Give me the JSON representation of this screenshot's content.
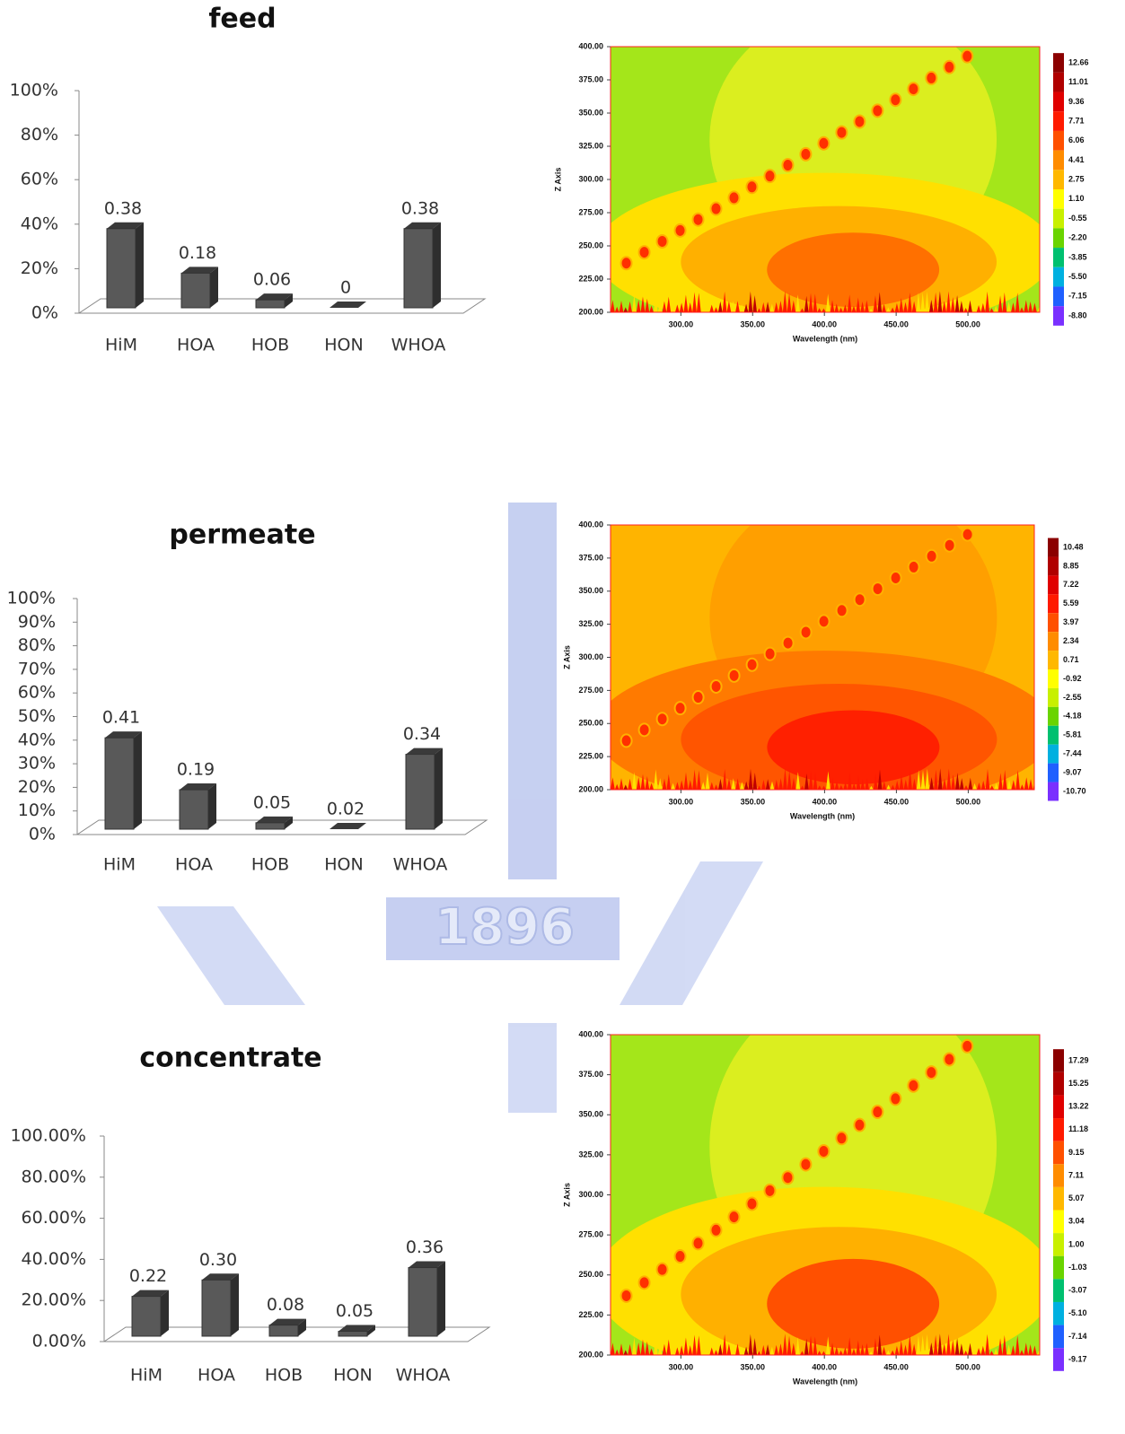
{
  "watermark": "1896",
  "chart_data": [
    {
      "type": "bar",
      "title": "feed",
      "categories": [
        "HiM",
        "HOA",
        "HOB",
        "HON",
        "WHOA"
      ],
      "values": [
        38,
        18,
        6,
        0,
        38
      ],
      "value_labels": [
        "0.38",
        "0.18",
        "0.06",
        "0",
        "0.38"
      ],
      "color": "#595959",
      "ylim": [
        0,
        100
      ],
      "yticks": [
        {
          "value": 0,
          "label": "0%"
        },
        {
          "value": 20,
          "label": "20%"
        },
        {
          "value": 40,
          "label": "40%"
        },
        {
          "value": 60,
          "label": "60%"
        },
        {
          "value": 80,
          "label": "80%"
        },
        {
          "value": 100,
          "label": "100%"
        }
      ]
    },
    {
      "type": "contour",
      "xlabel": "Wavelength (nm)",
      "ylabel": "Z Axis",
      "xlim": [
        251,
        550
      ],
      "ylim": [
        200,
        400
      ],
      "xticks": [
        {
          "value": 300,
          "label": "300.00"
        },
        {
          "value": 350,
          "label": "350.00"
        },
        {
          "value": 400,
          "label": "400.00"
        },
        {
          "value": 450,
          "label": "450.00"
        },
        {
          "value": 500,
          "label": "500.00"
        }
      ],
      "yticks": [
        {
          "value": 200,
          "label": "200.00"
        },
        {
          "value": 225,
          "label": "225.00"
        },
        {
          "value": 250,
          "label": "250.00"
        },
        {
          "value": 275,
          "label": "275.00"
        },
        {
          "value": 300,
          "label": "300.00"
        },
        {
          "value": 325,
          "label": "325.00"
        },
        {
          "value": 350,
          "label": "350.00"
        },
        {
          "value": 375,
          "label": "375.00"
        },
        {
          "value": 400,
          "label": "400.00"
        }
      ],
      "colorbar_ticks": [
        12.66,
        11.01,
        9.36,
        7.71,
        6.06,
        4.41,
        2.75,
        {
          "value": 1.1,
          "label": "1.10"
        },
        -0.55,
        {
          "value": -2.2,
          "label": "-2.20"
        },
        -3.85,
        {
          "value": -5.5,
          "label": "-5.50"
        },
        -7.15,
        {
          "value": -8.8,
          "label": "-8.80"
        }
      ],
      "colors": [
        "#8b0000",
        "#b00000",
        "#e00000",
        "#ff1a00",
        "#ff5000",
        "#ff8c00",
        "#ffb800",
        "#ffff00",
        "#c8f000",
        "#6ad400",
        "#00c070",
        "#00b0e0",
        "#2060ff",
        "#7a30ff"
      ],
      "background": "#a4e61a",
      "field_colors": [
        "#e8f020",
        "#ffe000",
        "#ffb000",
        "#ff7000"
      ]
    },
    {
      "type": "bar",
      "title": "permeate",
      "categories": [
        "HiM",
        "HOA",
        "HOB",
        "HON",
        "WHOA"
      ],
      "values": [
        41,
        19,
        5,
        2,
        34
      ],
      "value_labels": [
        "0.41",
        "0.19",
        "0.05",
        "0.02",
        "0.34"
      ],
      "color": "#595959",
      "ylim": [
        0,
        100
      ],
      "yticks": [
        {
          "value": 0,
          "label": "0%"
        },
        {
          "value": 10,
          "label": "10%"
        },
        {
          "value": 20,
          "label": "20%"
        },
        {
          "value": 30,
          "label": "30%"
        },
        {
          "value": 40,
          "label": "40%"
        },
        {
          "value": 50,
          "label": "50%"
        },
        {
          "value": 60,
          "label": "60%"
        },
        {
          "value": 70,
          "label": "70%"
        },
        {
          "value": 80,
          "label": "80%"
        },
        {
          "value": 90,
          "label": "90%"
        },
        {
          "value": 100,
          "label": "100%"
        }
      ]
    },
    {
      "type": "contour",
      "xlabel": "Wavelength (nm)",
      "ylabel": "Z Axis",
      "xlim": [
        251,
        546
      ],
      "ylim": [
        200,
        400
      ],
      "xticks": [
        {
          "value": 300,
          "label": "300.00"
        },
        {
          "value": 350,
          "label": "350.00"
        },
        {
          "value": 400,
          "label": "400.00"
        },
        {
          "value": 450,
          "label": "450.00"
        },
        {
          "value": 500,
          "label": "500.00"
        }
      ],
      "yticks": [
        {
          "value": 200,
          "label": "200.00"
        },
        {
          "value": 225,
          "label": "225.00"
        },
        {
          "value": 250,
          "label": "250.00"
        },
        {
          "value": 275,
          "label": "275.00"
        },
        {
          "value": 300,
          "label": "300.00"
        },
        {
          "value": 325,
          "label": "325.00"
        },
        {
          "value": 350,
          "label": "350.00"
        },
        {
          "value": 375,
          "label": "375.00"
        },
        {
          "value": 400,
          "label": "400.00"
        }
      ],
      "colorbar_ticks": [
        10.48,
        8.85,
        7.22,
        5.59,
        3.97,
        2.34,
        0.71,
        -0.92,
        -2.55,
        -4.18,
        -5.81,
        -7.44,
        -9.07,
        {
          "value": -10.7,
          "label": "-10.70"
        }
      ],
      "colors": [
        "#8b0000",
        "#b00000",
        "#e00000",
        "#ff1a00",
        "#ff5000",
        "#ff8c00",
        "#ffb800",
        "#ffff00",
        "#c8f000",
        "#6ad400",
        "#00c070",
        "#00b0e0",
        "#2060ff",
        "#7a30ff"
      ],
      "background": "#ffb400",
      "field_colors": [
        "#ff9a00",
        "#ff7a00",
        "#ff5500",
        "#ff2000"
      ]
    },
    {
      "type": "bar",
      "title": "concentrate",
      "categories": [
        "HiM",
        "HOA",
        "HOB",
        "HON",
        "WHOA"
      ],
      "values": [
        22,
        30,
        8,
        5,
        36
      ],
      "value_labels": [
        "0.22",
        "0.30",
        "0.08",
        "0.05",
        "0.36"
      ],
      "color": "#595959",
      "ylim": [
        0,
        100
      ],
      "yticks": [
        {
          "value": 0,
          "label": "0.00%"
        },
        {
          "value": 20,
          "label": "20.00%"
        },
        {
          "value": 40,
          "label": "40.00%"
        },
        {
          "value": 60,
          "label": "60.00%"
        },
        {
          "value": 80,
          "label": "80.00%"
        },
        {
          "value": 100,
          "label": "100.00%"
        }
      ]
    },
    {
      "type": "contour",
      "xlabel": "Wavelength (nm)",
      "ylabel": "Z Axis",
      "xlim": [
        251,
        550
      ],
      "ylim": [
        200,
        400
      ],
      "xticks": [
        {
          "value": 300,
          "label": "300.00"
        },
        {
          "value": 350,
          "label": "350.00"
        },
        {
          "value": 400,
          "label": "400.00"
        },
        {
          "value": 450,
          "label": "450.00"
        },
        {
          "value": 500,
          "label": "500.00"
        }
      ],
      "yticks": [
        {
          "value": 200,
          "label": "200.00"
        },
        {
          "value": 225,
          "label": "225.00"
        },
        {
          "value": 250,
          "label": "250.00"
        },
        {
          "value": 275,
          "label": "275.00"
        },
        {
          "value": 300,
          "label": "300.00"
        },
        {
          "value": 325,
          "label": "325.00"
        },
        {
          "value": 350,
          "label": "350.00"
        },
        {
          "value": 375,
          "label": "375.00"
        },
        {
          "value": 400,
          "label": "400.00"
        }
      ],
      "colorbar_ticks": [
        17.29,
        15.25,
        13.22,
        11.18,
        9.15,
        7.11,
        5.07,
        3.04,
        {
          "value": 1,
          "label": "1.00"
        },
        -1.03,
        -3.07,
        {
          "value": -5.1,
          "label": "-5.10"
        },
        -7.14,
        -9.17
      ],
      "colors": [
        "#8b0000",
        "#b00000",
        "#e00000",
        "#ff1a00",
        "#ff5000",
        "#ff8c00",
        "#ffb800",
        "#ffff00",
        "#c8f000",
        "#6ad400",
        "#00c070",
        "#00b0e0",
        "#2060ff",
        "#7a30ff"
      ],
      "background": "#a4e61a",
      "field_colors": [
        "#e8f020",
        "#ffe000",
        "#ffb000",
        "#ff5000"
      ]
    }
  ]
}
